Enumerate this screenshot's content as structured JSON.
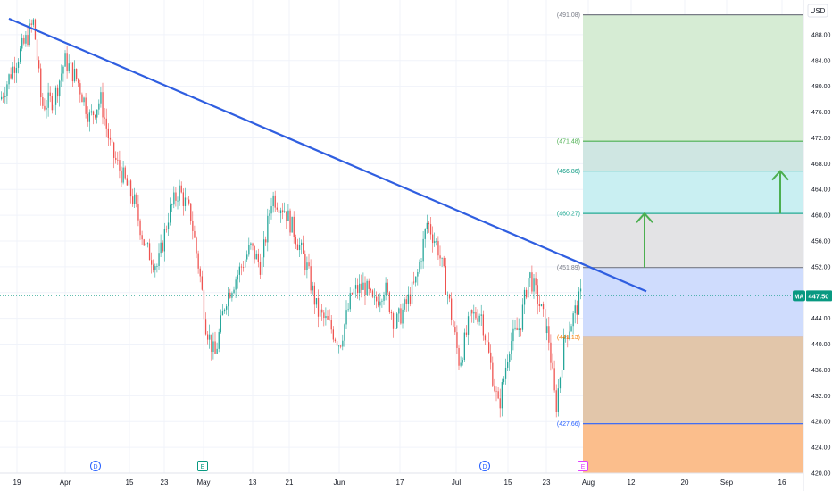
{
  "chart_data": {
    "type": "candlestick",
    "currency": "USD",
    "last_price": {
      "symbol_badge": "MA",
      "value": "447.50",
      "price": 447.5
    },
    "y_axis": {
      "range": [
        420,
        492
      ],
      "ticks": [
        "488.00",
        "484.00",
        "480.00",
        "476.00",
        "472.00",
        "468.00",
        "464.00",
        "460.00",
        "456.00",
        "452.00",
        "448.00",
        "444.00",
        "440.00",
        "436.00",
        "432.00",
        "428.00",
        "424.00",
        "420.00"
      ]
    },
    "x_axis": {
      "ticks": [
        "19",
        "Apr",
        "15",
        "23",
        "May",
        "13",
        "21",
        "Jun",
        "17",
        "Jul",
        "15",
        "23",
        "Aug",
        "12",
        "20",
        "Sep",
        "16"
      ]
    },
    "fib_levels": [
      {
        "label": "(491.08)",
        "price": 491.08,
        "color": "#787b86"
      },
      {
        "label": "(471.48)",
        "price": 471.48,
        "color": "#4caf50"
      },
      {
        "label": "(466.86)",
        "price": 466.86,
        "color": "#089981"
      },
      {
        "label": "(460.27)",
        "price": 460.27,
        "color": "#22ab94"
      },
      {
        "label": "(451.89)",
        "price": 451.89,
        "color": "#787b86"
      },
      {
        "label": "(441.13)",
        "price": 441.13,
        "color": "#f57c00"
      },
      {
        "label": "(427.66)",
        "price": 427.66,
        "color": "#2962ff"
      }
    ],
    "fib_zones": [
      {
        "from": 471.48,
        "to": 491.08,
        "color": "#d6ecd4"
      },
      {
        "from": 466.86,
        "to": 471.48,
        "color": "#cfe6e2"
      },
      {
        "from": 460.27,
        "to": 466.86,
        "color": "#c9eff2"
      },
      {
        "from": 451.89,
        "to": 460.27,
        "color": "#e3e3e5"
      },
      {
        "from": 441.13,
        "to": 451.89,
        "color": "#cfdcfd"
      },
      {
        "from": 427.66,
        "to": 441.13,
        "color": "#e2c6aa"
      },
      {
        "from": 420.0,
        "to": 427.66,
        "color": "#fbbe8c"
      }
    ],
    "trendline": {
      "start": {
        "date": "19",
        "price": 490.5
      },
      "end": {
        "date": "Aug 14",
        "price": 448.2
      },
      "color": "#2f5ee0"
    },
    "arrows": [
      {
        "at": "Aug 14",
        "from": 451.89,
        "to": 460.27,
        "color": "#4caf50"
      },
      {
        "at": "Sep 16",
        "from": 460.27,
        "to": 466.86,
        "color": "#4caf50"
      }
    ],
    "event_markers": [
      {
        "type": "dividend",
        "label": "D",
        "color": "#2962ff",
        "near": "15"
      },
      {
        "type": "earnings",
        "label": "E",
        "color": "#089981",
        "near": "May"
      },
      {
        "type": "dividend",
        "label": "D",
        "color": "#2962ff",
        "near": "Jul"
      },
      {
        "type": "earnings",
        "label": "E",
        "color": "#e040fb",
        "near": "Aug"
      }
    ],
    "series": [
      {
        "kind": "close_path",
        "values": [
          [
            0,
            478
          ],
          [
            14,
            483
          ],
          [
            28,
            487
          ],
          [
            37,
            490
          ],
          [
            46,
            477
          ],
          [
            60,
            478
          ],
          [
            72,
            484
          ],
          [
            86,
            481
          ],
          [
            100,
            475
          ],
          [
            112,
            478
          ],
          [
            124,
            470
          ],
          [
            137,
            466
          ],
          [
            150,
            462
          ],
          [
            162,
            455
          ],
          [
            176,
            452
          ],
          [
            188,
            460
          ],
          [
            200,
            464
          ],
          [
            213,
            460
          ],
          [
            223,
            451
          ],
          [
            230,
            443
          ],
          [
            240,
            438
          ],
          [
            252,
            447
          ],
          [
            266,
            451
          ],
          [
            280,
            455
          ],
          [
            292,
            452
          ],
          [
            304,
            463
          ],
          [
            318,
            461
          ],
          [
            330,
            457
          ],
          [
            343,
            452
          ],
          [
            355,
            445
          ],
          [
            368,
            443
          ],
          [
            380,
            440
          ],
          [
            394,
            448
          ],
          [
            408,
            449
          ],
          [
            418,
            446
          ],
          [
            430,
            449
          ],
          [
            442,
            443
          ],
          [
            454,
            446
          ],
          [
            466,
            450
          ],
          [
            478,
            459
          ],
          [
            490,
            455
          ],
          [
            502,
            447
          ],
          [
            514,
            437
          ],
          [
            526,
            444
          ],
          [
            538,
            445
          ],
          [
            550,
            436
          ],
          [
            558,
            430
          ],
          [
            570,
            440
          ],
          [
            582,
            443
          ],
          [
            592,
            451
          ],
          [
            604,
            446
          ],
          [
            614,
            441
          ],
          [
            622,
            430
          ],
          [
            632,
            441
          ],
          [
            641,
            444
          ],
          [
            650,
            447.5
          ]
        ]
      }
    ],
    "grid": true
  }
}
